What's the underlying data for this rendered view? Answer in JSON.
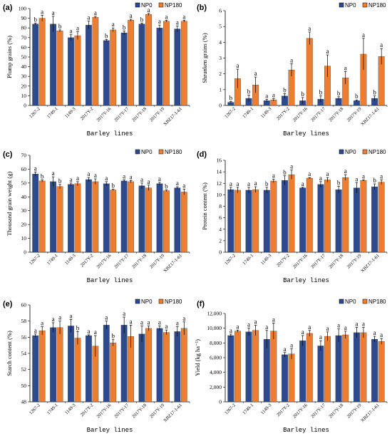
{
  "categories": [
    "1267-2",
    "1749-1",
    "1149-3",
    "2017Y-2",
    "2017Y-16",
    "2017Y-17",
    "2017Y-18",
    "2017Y-19",
    "XBZ17-1-61"
  ],
  "x_title": "Barley lines",
  "legend": [
    "NP0",
    "NP180"
  ],
  "colors": {
    "NP0": "#2e4a8f",
    "NP180": "#ed7d31",
    "error": "#000000"
  },
  "chart_data": [
    {
      "panel": "(a)",
      "type": "bar",
      "ylabel": "Plump grains (%)",
      "ylim": [
        0,
        100
      ],
      "yticks": [
        0,
        10,
        20,
        30,
        40,
        50,
        60,
        70,
        80,
        90,
        100
      ],
      "series": [
        {
          "name": "NP0",
          "values": [
            84,
            84,
            70,
            83,
            67,
            75,
            84,
            80,
            79
          ],
          "errors": [
            1,
            8,
            3,
            4,
            1,
            2,
            1,
            3,
            3
          ],
          "letters": [
            "b",
            "a",
            "a",
            "a",
            "b",
            "b",
            "b",
            "a",
            "a"
          ]
        },
        {
          "name": "NP180",
          "values": [
            90,
            77,
            72,
            91,
            78,
            88,
            94,
            87,
            87
          ],
          "errors": [
            3,
            1,
            4,
            1,
            2,
            1,
            1,
            1,
            1
          ],
          "letters": [
            "a",
            "b",
            "a",
            "a",
            "a",
            "a",
            "a",
            "a",
            "a"
          ]
        }
      ]
    },
    {
      "panel": "(b)",
      "type": "bar",
      "ylabel": "Shrunken grains (%)",
      "ylim": [
        0,
        6
      ],
      "yticks": [
        0,
        1,
        2,
        3,
        4,
        5,
        6
      ],
      "series": [
        {
          "name": "NP0",
          "values": [
            0.2,
            0.45,
            0.3,
            0.6,
            0.3,
            0.4,
            0.45,
            0.3,
            0.45
          ],
          "errors": [
            0.05,
            0.2,
            0.08,
            0.15,
            0.2,
            0.2,
            0.1,
            0.05,
            0.15
          ],
          "letters": [
            "b",
            "b",
            "a",
            "b",
            "b",
            "b",
            "b",
            "b",
            "b"
          ]
        },
        {
          "name": "NP180",
          "values": [
            1.7,
            1.3,
            0.35,
            2.25,
            4.25,
            2.5,
            1.75,
            3.25,
            3.1
          ],
          "errors": [
            0.6,
            0.5,
            0.08,
            0.4,
            0.4,
            0.7,
            0.4,
            1.0,
            0.5
          ],
          "letters": [
            "a",
            "a",
            "a",
            "a",
            "a",
            "a",
            "a",
            "a",
            "a"
          ]
        }
      ]
    },
    {
      "panel": "(c)",
      "type": "bar",
      "ylabel": "Thousand grain weight (g)",
      "ylim": [
        0,
        70
      ],
      "yticks": [
        0,
        10,
        20,
        30,
        40,
        50,
        60,
        70
      ],
      "series": [
        {
          "name": "NP0",
          "values": [
            56.5,
            51,
            49,
            52.5,
            49.5,
            51.5,
            48,
            49.5,
            46.5
          ],
          "errors": [
            1.5,
            3.5,
            1,
            1.5,
            1.5,
            0.8,
            2,
            1,
            0.8
          ],
          "letters": [
            "a",
            "a",
            "a",
            "a",
            "a",
            "a",
            "a",
            "a",
            "a"
          ]
        },
        {
          "name": "NP180",
          "values": [
            51.5,
            47.5,
            49.5,
            51,
            45,
            51,
            46.5,
            44.5,
            43.5
          ],
          "errors": [
            0.8,
            1.5,
            1.5,
            2,
            0.5,
            0.8,
            2,
            0.5,
            2
          ],
          "letters": [
            "b",
            "b",
            "a",
            "a",
            "b",
            "a",
            "a",
            "b",
            "a"
          ]
        }
      ]
    },
    {
      "panel": "(d)",
      "type": "bar",
      "ylabel": "Protein content (%)",
      "ylim": [
        0,
        16
      ],
      "yticks": [
        0,
        2,
        4,
        6,
        8,
        10,
        12,
        14,
        16
      ],
      "series": [
        {
          "name": "NP0",
          "values": [
            10.9,
            10.8,
            10.8,
            12.5,
            11.2,
            11.8,
            10.9,
            11.2,
            11.4
          ],
          "errors": [
            0.4,
            0.5,
            0.5,
            0.8,
            0.1,
            0.5,
            0.6,
            0.9,
            0.5
          ],
          "letters": [
            "a",
            "a",
            "b",
            "b",
            "a",
            "a",
            "b",
            "a",
            "b"
          ]
        },
        {
          "name": "NP180",
          "values": [
            10.8,
            10.9,
            12.4,
            13.5,
            12.9,
            12.6,
            13.0,
            12.5,
            12.2
          ],
          "errors": [
            0.5,
            0.5,
            0.3,
            0.8,
            0.1,
            0.4,
            0.5,
            0.1,
            0.4
          ],
          "letters": [
            "a",
            "a",
            "a",
            "a",
            "a",
            "a",
            "a",
            "a",
            "a"
          ]
        }
      ]
    },
    {
      "panel": "(e)",
      "type": "bar",
      "ylabel": "Starch content (%)",
      "ylim": [
        48,
        60
      ],
      "yticks": [
        48,
        50,
        52,
        54,
        56,
        58,
        60
      ],
      "series": [
        {
          "name": "NP0",
          "values": [
            56.2,
            57.2,
            57.4,
            56.2,
            57.5,
            57.5,
            56.4,
            57.1,
            56.7
          ],
          "errors": [
            0.2,
            0.6,
            0.8,
            0.1,
            0.5,
            1.0,
            1.0,
            0.3,
            0.6
          ],
          "letters": [
            "a",
            "a",
            "a",
            "a",
            "a",
            "a",
            "a",
            "a",
            "a"
          ]
        },
        {
          "name": "NP180",
          "values": [
            56.8,
            57.2,
            55.9,
            54.9,
            55.3,
            56.1,
            57.1,
            56.6,
            57.1
          ],
          "errors": [
            0.5,
            0.8,
            0.8,
            1.3,
            0.4,
            1.4,
            0.3,
            0.3,
            0.8
          ],
          "letters": [
            "a",
            "a",
            "b",
            "a",
            "b",
            "a",
            "a",
            "a",
            "a"
          ]
        }
      ]
    },
    {
      "panel": "(f)",
      "type": "bar",
      "ylabel": "Yield (kg ha⁻¹)",
      "ylim": [
        0,
        12000
      ],
      "yticks": [
        0,
        2000,
        4000,
        6000,
        8000,
        10000,
        12000
      ],
      "ytick_labels": [
        "0",
        "2,000",
        "4,000",
        "6,000",
        "8,000",
        "10,000",
        "12,000"
      ],
      "series": [
        {
          "name": "NP0",
          "values": [
            9000,
            9500,
            8500,
            6400,
            8300,
            7600,
            9000,
            9400,
            8500
          ],
          "errors": [
            200,
            500,
            1200,
            300,
            700,
            700,
            900,
            700,
            400
          ],
          "letters": [
            "a",
            "a",
            "a",
            "a",
            "a",
            "a",
            "a",
            "a",
            "a"
          ]
        },
        {
          "name": "NP180",
          "values": [
            9600,
            9700,
            9600,
            6500,
            9300,
            8900,
            9100,
            9400,
            8200
          ],
          "errors": [
            150,
            700,
            1100,
            700,
            400,
            600,
            500,
            700,
            400
          ],
          "letters": [
            "a",
            "a",
            "a",
            "a",
            "a",
            "a",
            "a",
            "a",
            "a"
          ]
        }
      ]
    }
  ]
}
